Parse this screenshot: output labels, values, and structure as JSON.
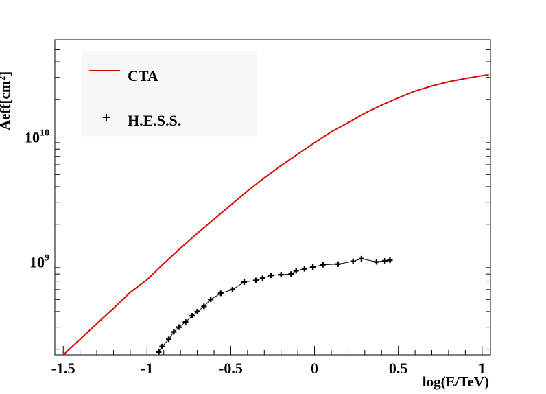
{
  "chart_data": {
    "type": "line",
    "xlabel": "log(E/TeV)",
    "ylabel": {
      "main": "Aeff",
      "unit_base": "[cm",
      "unit_exp": "2",
      "unit_close": "]"
    },
    "xlim": [
      -1.55,
      1.05
    ],
    "ylim": [
      180000000,
      60000000000
    ],
    "yscale": "log",
    "grid": false,
    "legend_position": "top-left",
    "x_ticks": [
      {
        "value": -1.5,
        "label": "-1.5"
      },
      {
        "value": -1,
        "label": "-1"
      },
      {
        "value": -0.5,
        "label": "-0.5"
      },
      {
        "value": 0,
        "label": "0"
      },
      {
        "value": 0.5,
        "label": "0.5"
      },
      {
        "value": 1,
        "label": "1"
      }
    ],
    "y_ticks": [
      {
        "value": 1000000000,
        "base": "10",
        "exp": "9"
      },
      {
        "value": 10000000000,
        "base": "10",
        "exp": "10"
      }
    ],
    "series": [
      {
        "name": "CTA",
        "color": "#dd0000",
        "style": "line",
        "x": [
          -1.53,
          -1.4,
          -1.3,
          -1.2,
          -1.1,
          -1.0,
          -0.9,
          -0.8,
          -0.7,
          -0.6,
          -0.5,
          -0.4,
          -0.3,
          -0.2,
          -0.1,
          0.0,
          0.1,
          0.2,
          0.3,
          0.4,
          0.5,
          0.6,
          0.7,
          0.8,
          0.9,
          1.0,
          1.04
        ],
        "values": [
          165000000,
          240000000,
          320000000,
          425000000,
          570000000,
          720000000,
          970000000,
          1290000000,
          1690000000,
          2200000000,
          2850000000,
          3700000000,
          4700000000,
          5900000000,
          7300000000,
          9000000000,
          11000000000,
          13000000000,
          15500000000,
          18000000000,
          20600000000,
          23300000000,
          25600000000,
          27700000000,
          29400000000,
          31000000000,
          31500000000
        ]
      },
      {
        "name": "H.E.S.S.",
        "color": "#000000",
        "style": "line+markers",
        "x": [
          -0.93,
          -0.91,
          -0.87,
          -0.84,
          -0.81,
          -0.77,
          -0.73,
          -0.7,
          -0.66,
          -0.62,
          -0.56,
          -0.49,
          -0.42,
          -0.35,
          -0.31,
          -0.26,
          -0.2,
          -0.14,
          -0.11,
          -0.06,
          -0.01,
          0.05,
          0.14,
          0.23,
          0.28,
          0.37,
          0.42,
          0.45
        ],
        "values": [
          190000000,
          210000000,
          240000000,
          275000000,
          300000000,
          330000000,
          370000000,
          400000000,
          440000000,
          500000000,
          560000000,
          600000000,
          690000000,
          710000000,
          740000000,
          780000000,
          790000000,
          800000000,
          850000000,
          880000000,
          910000000,
          950000000,
          960000000,
          1010000000,
          1060000000,
          1000000000,
          1020000000,
          1030000000
        ]
      }
    ]
  }
}
